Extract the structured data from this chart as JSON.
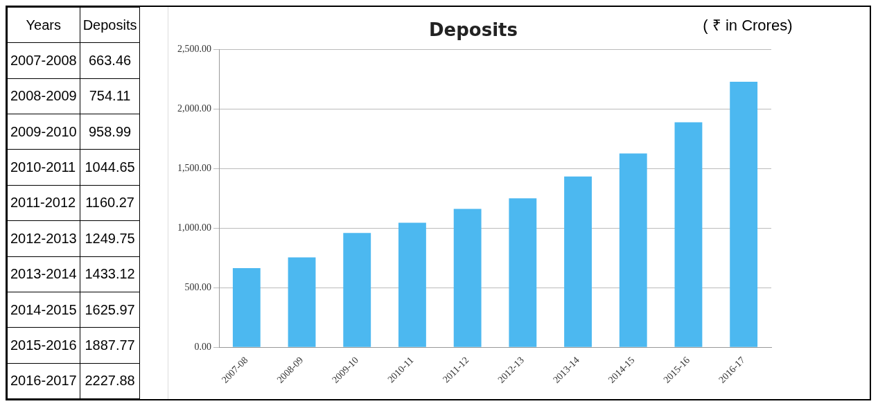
{
  "chart_data": [
    {
      "type": "other",
      "annotations": [
        "Years",
        "Deposits",
        "2007-2008",
        "663.46",
        "2008-2009",
        "754.11",
        "2009-2010",
        "958.99",
        "2010-2011",
        "1044.65",
        "2011-2012",
        "1160.27",
        "2012-2013",
        "1249.75",
        "2013-2014",
        "1433.12",
        "2014-2015",
        "1625.97",
        "2015-2016",
        "1887.77",
        "2016-2017",
        "2227.88"
      ]
    },
    {
      "type": "bar",
      "title": "Deposits",
      "categories": [
        "2007-08",
        "2008-09",
        "2009-10",
        "2010-11",
        "2011-12",
        "2012-13",
        "2013-14",
        "2014-15",
        "2015-16",
        "2016-17"
      ],
      "values": [
        663.46,
        754.11,
        958.99,
        1044.65,
        1160.27,
        1249.75,
        1433.12,
        1625.97,
        1887.77,
        2227.88
      ],
      "color": "#4cb8f0",
      "ylim": [
        0,
        2500
      ],
      "yticks": [
        {
          "value": 0,
          "label": "0.00"
        },
        {
          "value": 500,
          "label": "500.00"
        },
        {
          "value": 1000,
          "label": "1,000.00"
        },
        {
          "value": 1500,
          "label": "1,500.00"
        },
        {
          "value": 2000,
          "label": "2,000.00"
        },
        {
          "value": 2500,
          "label": "2,500.00"
        }
      ],
      "grid": "y",
      "legend": false,
      "annotations": [
        "( ₹ in Crores)"
      ]
    }
  ]
}
